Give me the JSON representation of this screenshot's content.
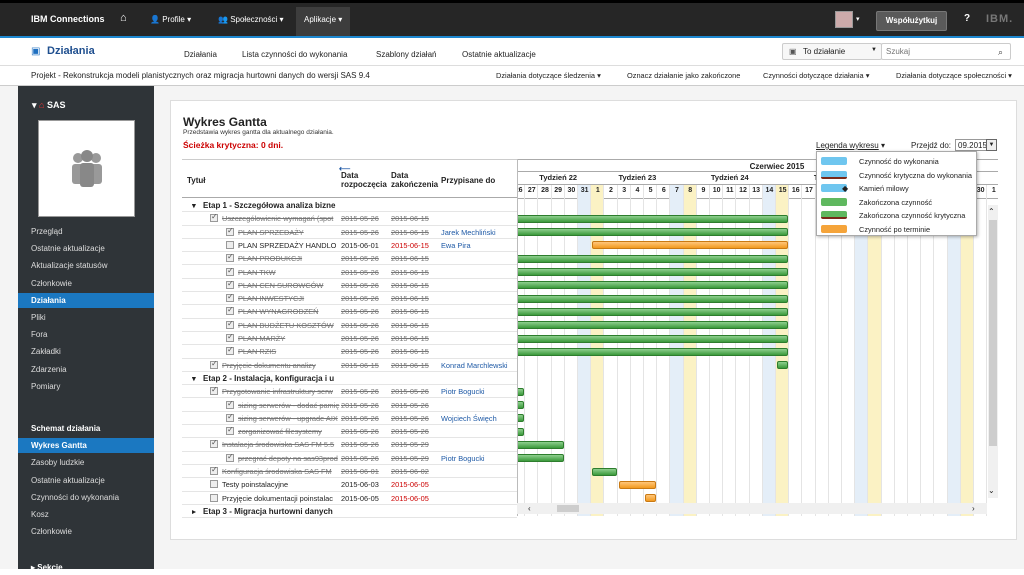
{
  "topbar": {
    "brand": "IBM Connections",
    "nav": [
      "Profile",
      "Społeczności",
      "Aplikacje"
    ],
    "share": "Współużytkuj",
    "help": "?",
    "ibm": "IBM."
  },
  "appbar": {
    "title": "Działania",
    "tabs": [
      "Działania",
      "Lista czynności do wykonania",
      "Szablony działań",
      "Ostatnie aktualizacje"
    ],
    "scope": "To działanie",
    "search_placeholder": "Szukaj"
  },
  "projbar": {
    "title": "Projekt - Rekonstrukcja modeli planistycznych oraz migracja hurtowni danych do wersji SAS 9.4",
    "actions": [
      "Działania dotyczące śledzenia",
      "Oznacz działanie jako zakończone",
      "Czynności dotyczące działania",
      "Działania dotyczące społeczności"
    ]
  },
  "sidebar": {
    "community": "SAS",
    "items": [
      "Przegląd",
      "Ostatnie aktualizacje",
      "Aktualizacje statusów",
      "Członkowie",
      "Działania",
      "Pliki",
      "Fora",
      "Zakładki",
      "Zdarzenia",
      "Pomiary"
    ],
    "items2": [
      "Schemat działania",
      "Wykres Gantta",
      "Zasoby ludzkie",
      "Ostatnie aktualizacje",
      "Czynności do wykonania",
      "Kosz",
      "Członkowie"
    ],
    "sections": "Sekcje"
  },
  "panel": {
    "title": "Wykres Gantta",
    "subtitle": "Przedstawia wykres gantta dla aktualnego działania.",
    "critical": "Ścieżka krytyczna: 0 dni.",
    "legend_label": "Legenda wykresu",
    "goto_label": "Przejdź do:",
    "goto_value": "09.2015"
  },
  "table": {
    "headers": {
      "title": "Tytuł",
      "start": "Data rozpoczęcia",
      "end": "Data zakończenia",
      "assigned": "Przypisane do"
    },
    "rows": [
      {
        "type": "grp",
        "title": "Etap 1 - Szczegółowa analiza bizne"
      },
      {
        "title": "Uszczegółowienie wymagań (spot",
        "start": "2015-05-26",
        "end": "2015-06-15",
        "who": "",
        "done": true,
        "lvl": 1
      },
      {
        "title": "PLAN SPRZEDAŻY",
        "start": "2015-05-26",
        "end": "2015-06-15",
        "who": "Jarek Mechliński",
        "done": true,
        "lvl": 2
      },
      {
        "title": "PLAN SPRZEDAŻY HANDLO",
        "start": "2015-06-01",
        "end": "2015-06-15",
        "who": "Ewa Pira",
        "done": false,
        "lvl": 2,
        "late": true
      },
      {
        "title": "PLAN PRODUKCJI",
        "start": "2015-05-26",
        "end": "2015-06-15",
        "who": "",
        "done": true,
        "lvl": 2
      },
      {
        "title": "PLAN TKW",
        "start": "2015-05-26",
        "end": "2015-06-15",
        "who": "",
        "done": true,
        "lvl": 2
      },
      {
        "title": "PLAN CEN SUROWCÓW",
        "start": "2015-05-26",
        "end": "2015-06-15",
        "who": "",
        "done": true,
        "lvl": 2
      },
      {
        "title": "PLAN INWESTYCJI",
        "start": "2015-05-26",
        "end": "2015-06-15",
        "who": "",
        "done": true,
        "lvl": 2
      },
      {
        "title": "PLAN WYNAGRODZEŃ",
        "start": "2015-05-26",
        "end": "2015-06-15",
        "who": "",
        "done": true,
        "lvl": 2
      },
      {
        "title": "PLAN BUDŻETU KOSZTÓW",
        "start": "2015-05-26",
        "end": "2015-06-15",
        "who": "",
        "done": true,
        "lvl": 2
      },
      {
        "title": "PLAN MARŻY",
        "start": "2015-05-26",
        "end": "2015-06-15",
        "who": "",
        "done": true,
        "lvl": 2
      },
      {
        "title": "PLAN RZIS",
        "start": "2015-05-26",
        "end": "2015-06-15",
        "who": "",
        "done": true,
        "lvl": 2
      },
      {
        "title": "Przyjęcie dokumentu analizy",
        "start": "2015-06-15",
        "end": "2015-06-15",
        "who": "Konrad Marchlewski",
        "done": true,
        "lvl": 1
      },
      {
        "type": "grp",
        "title": "Etap 2 - Instalacja, konfiguracja i u"
      },
      {
        "title": "Przygotowanie infrastruktury serw",
        "start": "2015-05-26",
        "end": "2015-05-26",
        "who": "Piotr Bogucki",
        "done": true,
        "lvl": 1
      },
      {
        "title": "sizing serwerów - dodać pamię",
        "start": "2015-05-26",
        "end": "2015-05-26",
        "who": "",
        "done": true,
        "lvl": 2
      },
      {
        "title": "sizing serwerów - upgrade AIX",
        "start": "2015-05-26",
        "end": "2015-05-26",
        "who": "Wojciech Święch",
        "done": true,
        "lvl": 2
      },
      {
        "title": "zorganizować filesystemy",
        "start": "2015-05-26",
        "end": "2015-05-26",
        "who": "",
        "done": true,
        "lvl": 2
      },
      {
        "title": "Instalacja środowiska SAS FM 5.5",
        "start": "2015-05-26",
        "end": "2015-05-29",
        "who": "",
        "done": true,
        "lvl": 1
      },
      {
        "title": "przegrać depoty na sas93prod",
        "start": "2015-05-26",
        "end": "2015-05-29",
        "who": "Piotr Bogucki",
        "done": true,
        "lvl": 2
      },
      {
        "title": "Konfiguracja środowiska SAS FM",
        "start": "2015-06-01",
        "end": "2015-06-02",
        "who": "",
        "done": true,
        "lvl": 1
      },
      {
        "title": "Testy poinstalacyjne",
        "start": "2015-06-03",
        "end": "2015-06-05",
        "who": "",
        "done": false,
        "lvl": 1,
        "late": true
      },
      {
        "title": "Przyjęcie dokumentacji poinstalac",
        "start": "2015-06-05",
        "end": "2015-06-05",
        "who": "",
        "done": false,
        "lvl": 1,
        "late": true
      },
      {
        "type": "grp",
        "title": "Etap 3 - Migracja hurtowni danych",
        "collapsed": true
      }
    ]
  },
  "gantt": {
    "month": "Czerwiec 2015",
    "weeks": [
      "Tydzień 22",
      "Tydzień 23",
      "Tydzień 24",
      "Tydz",
      "Ty"
    ],
    "days": [
      "26",
      "27",
      "28",
      "29",
      "30",
      "31",
      "1",
      "2",
      "3",
      "4",
      "5",
      "6",
      "7",
      "8",
      "9",
      "10",
      "11",
      "12",
      "13",
      "14",
      "15",
      "16",
      "17",
      "18",
      "19",
      "20",
      "21",
      "22",
      "23",
      "24",
      "25",
      "26",
      "27",
      "28",
      "29",
      "30",
      "1"
    ]
  },
  "legend": [
    {
      "label": "Czynność do wykonania",
      "color": "#6fc6ef"
    },
    {
      "label": "Czynność krytyczna do wykonania",
      "color": "#6fc6ef"
    },
    {
      "label": "Kamień milowy",
      "color": "#6fc6ef"
    },
    {
      "label": "Zakończona czynność",
      "color": "#5fb85f"
    },
    {
      "label": "Zakończona czynność krytyczna",
      "color": "#5fb85f"
    },
    {
      "label": "Czynność po terminie",
      "color": "#f5a43a"
    }
  ]
}
